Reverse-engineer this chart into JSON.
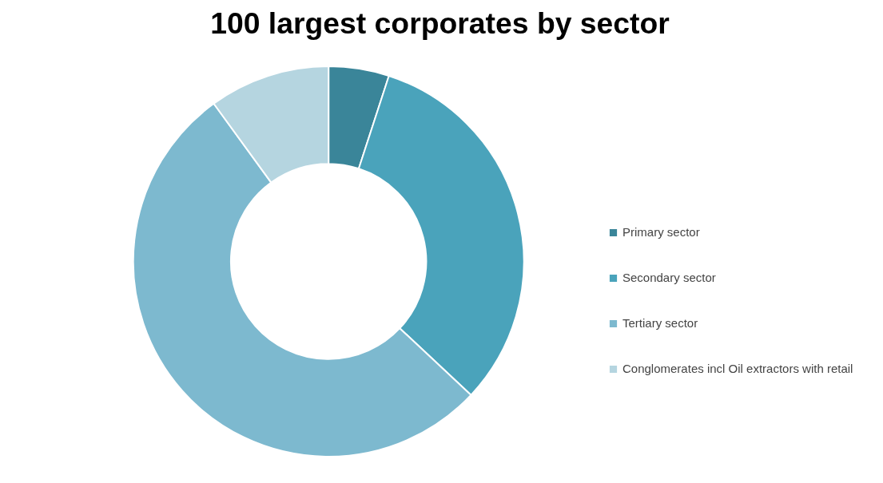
{
  "chart_data": {
    "type": "donut",
    "title": "100 largest corporates by sector",
    "categories": [
      "Primary sector",
      "Secondary sector",
      "Tertiary sector",
      "Conglomerates incl Oil extractors with retail"
    ],
    "values": [
      5,
      32,
      53,
      10
    ],
    "colors": [
      "#3a8599",
      "#4aa3bb",
      "#7db9cf",
      "#b5d5e0"
    ],
    "legend": "right"
  }
}
